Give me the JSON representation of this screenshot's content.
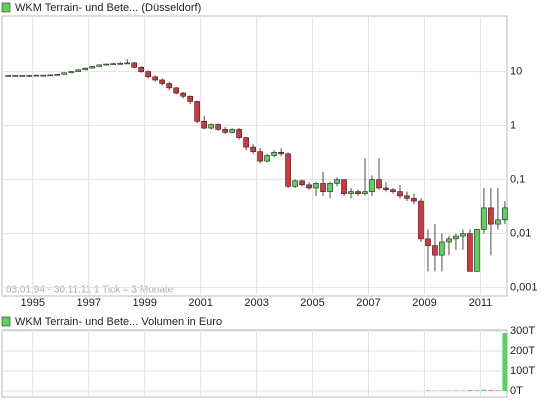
{
  "chart_data": [
    {
      "type": "candlestick",
      "title": "WKM Terrain- und Bete... (Düsseldorf)",
      "note": "03.01.94 - 30.11.11   1 Tick = 3 Monate",
      "log_scale": true,
      "grid": true,
      "up_color": "#5bd35b",
      "down_color": "#d9333f",
      "xlim": [
        1993.9,
        2011.95
      ],
      "xticks": [
        {
          "value": 1995,
          "label": "1995"
        },
        {
          "value": 1997,
          "label": "1997"
        },
        {
          "value": 1999,
          "label": "1999"
        },
        {
          "value": 2001,
          "label": "2001"
        },
        {
          "value": 2003,
          "label": "2003"
        },
        {
          "value": 2005,
          "label": "2005"
        },
        {
          "value": 2007,
          "label": "2007"
        },
        {
          "value": 2009,
          "label": "2009"
        },
        {
          "value": 2011,
          "label": "2011"
        }
      ],
      "ylim": [
        0.0007,
        107
      ],
      "yticks": [
        10,
        1,
        {
          "value": 0.1,
          "label": "0,1"
        },
        {
          "value": 0.01,
          "label": "0,01"
        },
        {
          "value": 0.001,
          "label": "0,001"
        }
      ],
      "x": [
        1994,
        1994.25,
        1994.5,
        1994.75,
        1995,
        1995.25,
        1995.5,
        1995.75,
        1996,
        1996.25,
        1996.5,
        1996.75,
        1997,
        1997.25,
        1997.5,
        1997.75,
        1998,
        1998.25,
        1998.5,
        1998.75,
        1999,
        1999.25,
        1999.5,
        1999.75,
        2000,
        2000.25,
        2000.5,
        2000.75,
        2001,
        2001.25,
        2001.5,
        2001.75,
        2002,
        2002.25,
        2002.5,
        2002.75,
        2003,
        2003.25,
        2003.5,
        2003.75,
        2004,
        2004.25,
        2004.5,
        2004.75,
        2005,
        2005.25,
        2005.5,
        2005.75,
        2006,
        2006.25,
        2006.5,
        2006.75,
        2007,
        2007.25,
        2007.5,
        2007.75,
        2008,
        2008.25,
        2008.5,
        2008.75,
        2009,
        2009.25,
        2009.5,
        2009.75,
        2010,
        2010.25,
        2010.5,
        2010.75,
        2011,
        2011.25,
        2011.5,
        2011.75
      ],
      "open": [
        8.5,
        8.5,
        8.5,
        8.5,
        8.5,
        8.6,
        8.6,
        8.7,
        8.9,
        9.5,
        10,
        10.8,
        11.6,
        12.5,
        13.3,
        13.8,
        14,
        14.2,
        14.5,
        12,
        10,
        8,
        7,
        6,
        5,
        4,
        3.5,
        2.8,
        1.2,
        0.9,
        1.05,
        0.85,
        0.75,
        0.85,
        0.6,
        0.4,
        0.33,
        0.22,
        0.28,
        0.32,
        0.3,
        0.075,
        0.095,
        0.08,
        0.07,
        0.085,
        0.06,
        0.085,
        0.1,
        0.055,
        0.06,
        0.055,
        0.06,
        0.1,
        0.07,
        0.065,
        0.06,
        0.05,
        0.045,
        0.04,
        0.008,
        0.006,
        0.004,
        0.007,
        0.008,
        0.009,
        0.01,
        0.002,
        0.012,
        0.03,
        0.015,
        0.018
      ],
      "high": [
        8.6,
        8.6,
        8.6,
        8.6,
        8.7,
        8.7,
        8.8,
        9.0,
        9.6,
        10.2,
        11,
        11.8,
        12.6,
        13.5,
        14,
        14.5,
        15,
        17,
        15,
        12.5,
        10.5,
        8.5,
        7.5,
        6.5,
        5.2,
        4.2,
        3.6,
        2.9,
        1.5,
        1.1,
        1.1,
        0.95,
        0.9,
        0.9,
        0.62,
        0.45,
        0.38,
        0.3,
        0.35,
        0.38,
        0.32,
        0.1,
        0.1,
        0.09,
        0.09,
        0.14,
        0.09,
        0.11,
        0.1,
        0.07,
        0.065,
        0.25,
        0.12,
        0.25,
        0.09,
        0.07,
        0.08,
        0.06,
        0.055,
        0.045,
        0.012,
        0.015,
        0.01,
        0.009,
        0.01,
        0.012,
        0.012,
        0.01,
        0.07,
        0.07,
        0.07,
        0.04
      ],
      "low": [
        8.4,
        8.4,
        8.4,
        8.4,
        8.4,
        8.5,
        8.5,
        8.6,
        8.8,
        9.4,
        9.9,
        10.6,
        11.5,
        12.3,
        13,
        13.5,
        13.7,
        13.8,
        11.5,
        9.5,
        7.5,
        6.5,
        5.5,
        4.5,
        3.8,
        3.2,
        2.5,
        1.1,
        0.85,
        0.85,
        0.8,
        0.7,
        0.72,
        0.55,
        0.35,
        0.3,
        0.2,
        0.21,
        0.26,
        0.27,
        0.07,
        0.07,
        0.075,
        0.065,
        0.05,
        0.05,
        0.045,
        0.075,
        0.05,
        0.045,
        0.05,
        0.05,
        0.05,
        0.065,
        0.06,
        0.055,
        0.045,
        0.04,
        0.035,
        0.007,
        0.002,
        0.002,
        0.002,
        0.004,
        0.005,
        0.005,
        0.003,
        0.002,
        0.01,
        0.004,
        0.012,
        0.015
      ],
      "close": [
        8.5,
        8.5,
        8.5,
        8.5,
        8.6,
        8.6,
        8.7,
        8.9,
        9.5,
        10,
        10.8,
        11.6,
        12.5,
        13.3,
        13.8,
        14,
        14.2,
        14.5,
        12,
        10,
        8,
        7,
        6,
        5,
        4,
        3.5,
        2.8,
        1.2,
        0.9,
        1.05,
        0.85,
        0.75,
        0.85,
        0.6,
        0.4,
        0.33,
        0.22,
        0.28,
        0.32,
        0.3,
        0.075,
        0.095,
        0.08,
        0.07,
        0.085,
        0.06,
        0.085,
        0.1,
        0.055,
        0.06,
        0.055,
        0.06,
        0.1,
        0.07,
        0.065,
        0.06,
        0.05,
        0.045,
        0.04,
        0.008,
        0.006,
        0.004,
        0.007,
        0.008,
        0.009,
        0.01,
        0.002,
        0.012,
        0.03,
        0.015,
        0.018,
        0.03
      ]
    },
    {
      "type": "volume",
      "title": "WKM Terrain- und Bete... Volumen in Euro",
      "ylim": [
        -30,
        305
      ],
      "yticks": [
        {
          "value": 300,
          "label": "300T"
        },
        {
          "value": 200,
          "label": "200T"
        },
        {
          "value": 100,
          "label": "100T"
        },
        {
          "value": 0,
          "label": "0T"
        }
      ],
      "values": [
        0,
        0,
        0,
        0,
        0,
        0,
        0,
        0,
        0,
        0,
        0,
        0,
        0,
        0,
        0,
        0,
        0,
        0,
        0,
        0,
        0,
        0,
        0,
        0,
        0,
        0,
        0,
        0,
        0,
        0,
        0,
        0,
        0,
        0,
        0,
        0,
        0,
        0,
        0,
        0,
        0,
        0,
        0,
        0,
        0,
        0,
        0,
        0,
        0,
        0,
        0,
        0,
        0,
        0,
        0,
        0,
        0,
        0,
        0,
        0,
        2,
        1,
        2,
        2,
        3,
        2,
        3,
        4,
        6,
        3,
        4,
        290
      ]
    }
  ]
}
